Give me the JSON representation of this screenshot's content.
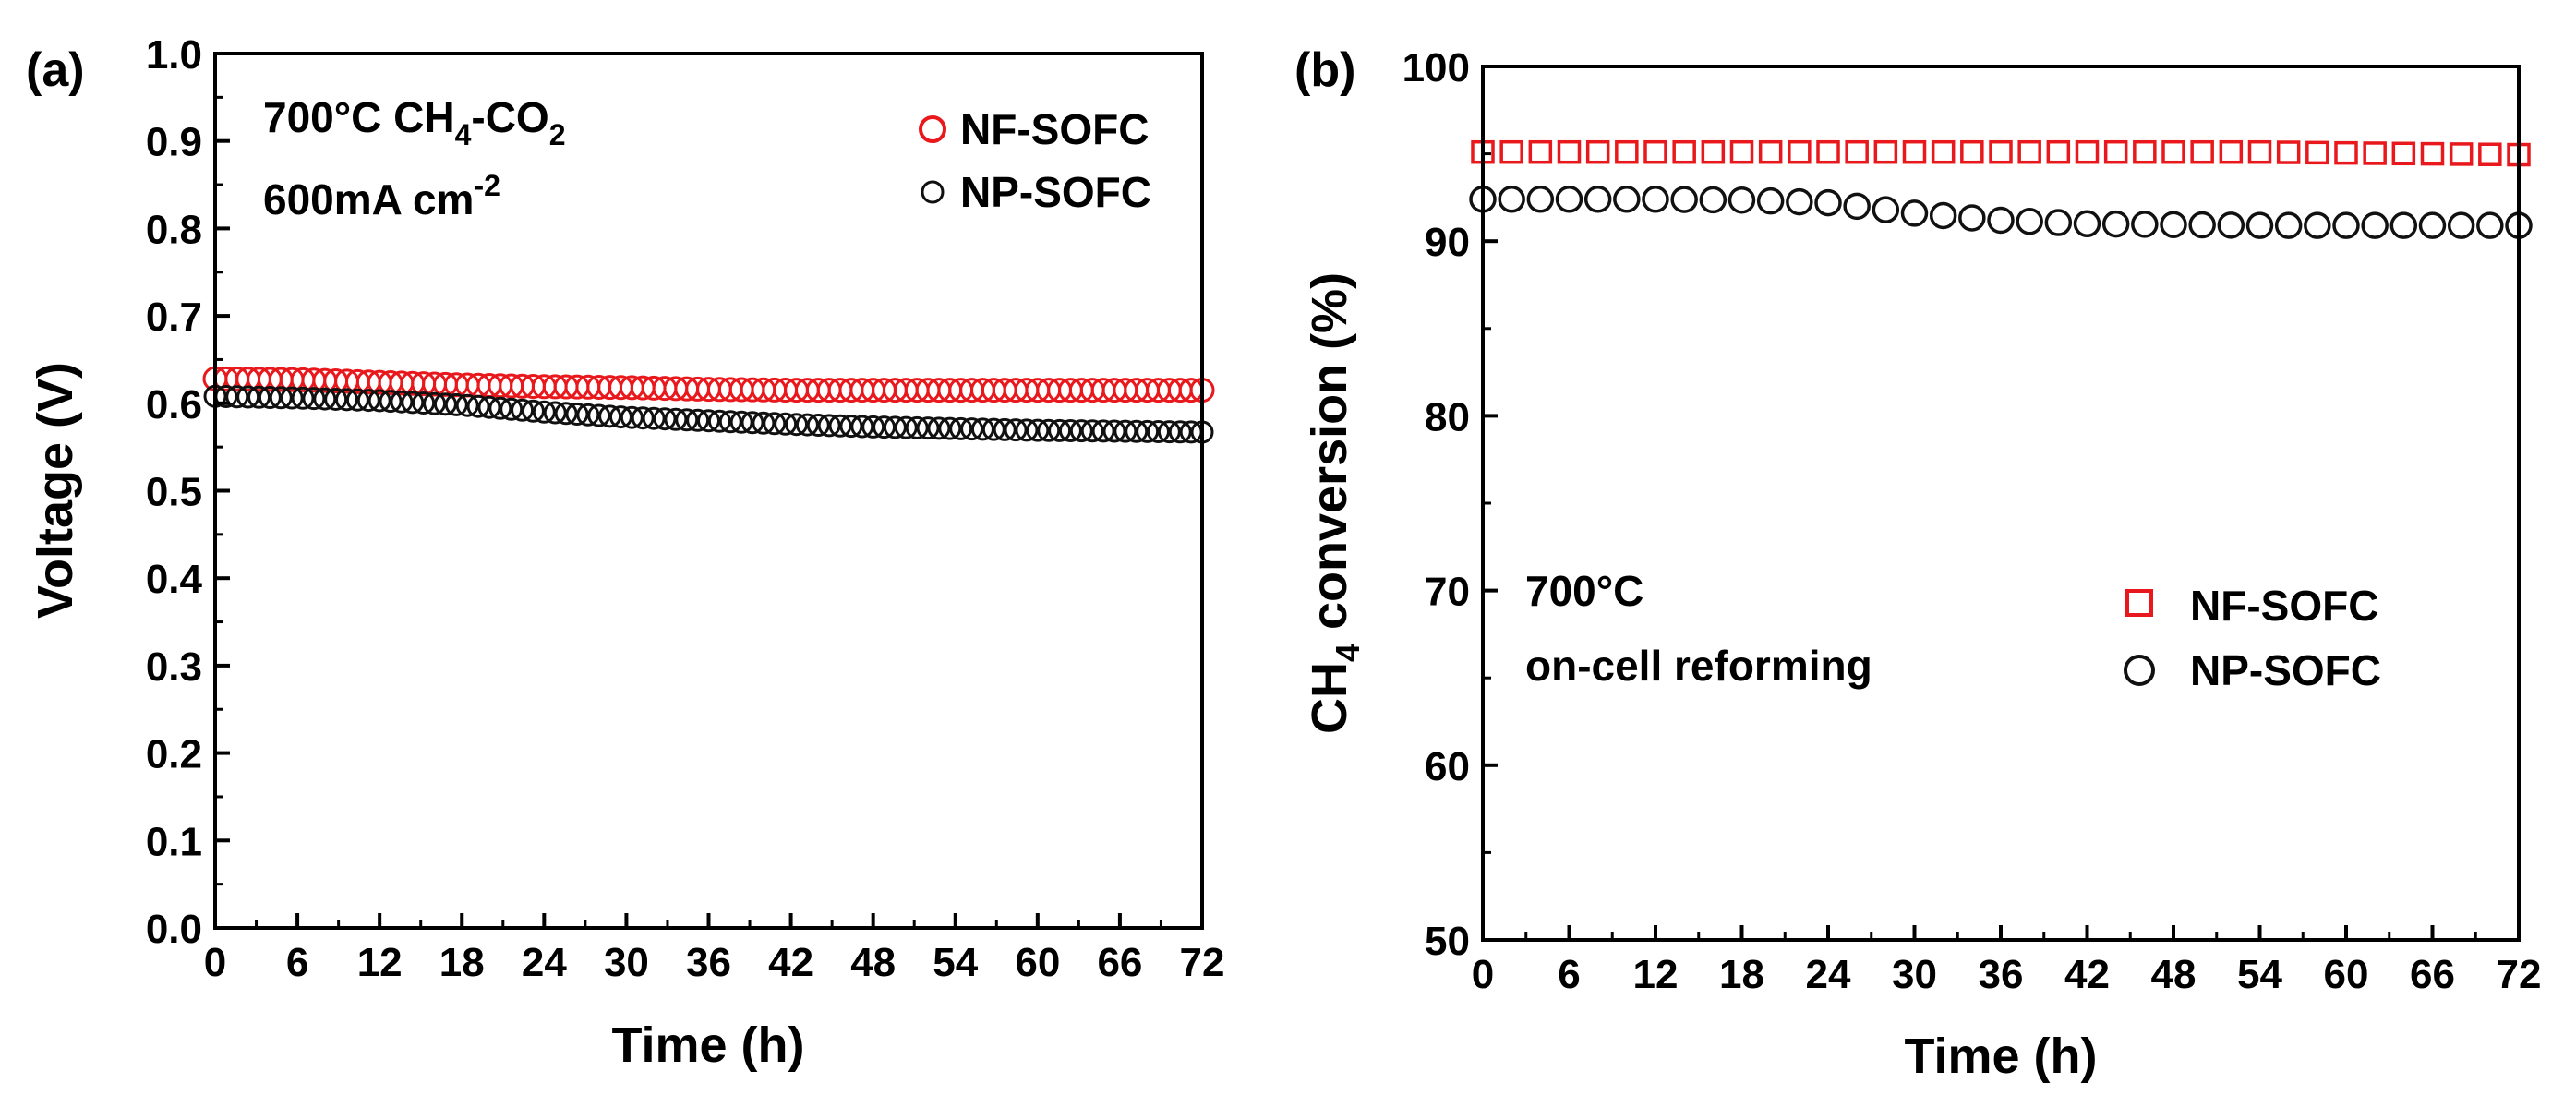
{
  "chart_data": [
    {
      "type": "scatter",
      "panel_label": "(a)",
      "xlabel": "Time (h)",
      "ylabel": "Voltage (V)",
      "xlim": [
        0,
        72
      ],
      "ylim": [
        0.0,
        1.0
      ],
      "xticks": [
        "0",
        "6",
        "12",
        "18",
        "24",
        "30",
        "36",
        "42",
        "48",
        "54",
        "60",
        "66",
        "72"
      ],
      "yticks": [
        "0.0",
        "0.1",
        "0.2",
        "0.3",
        "0.4",
        "0.5",
        "0.6",
        "0.7",
        "0.8",
        "0.9",
        "1.0"
      ],
      "annotation": {
        "line1_prefix": "700°C CH",
        "line1_sub1": "4",
        "line1_mid": "-CO",
        "line1_sub2": "2",
        "line2_prefix": "600mA cm",
        "line2_sup": "-2"
      },
      "legend_position": "top-right",
      "series": [
        {
          "name": "NF-SOFC",
          "color": "#e8181c",
          "marker": "circle",
          "x": [
            0,
            6,
            12,
            18,
            24,
            30,
            36,
            42,
            48,
            54,
            60,
            66,
            72
          ],
          "y": [
            0.628,
            0.627,
            0.624,
            0.621,
            0.619,
            0.618,
            0.616,
            0.615,
            0.615,
            0.615,
            0.615,
            0.615,
            0.615
          ]
        },
        {
          "name": "NP-SOFC",
          "color": "#111111",
          "marker": "circle",
          "x": [
            0,
            6,
            12,
            18,
            24,
            30,
            36,
            42,
            48,
            54,
            60,
            66,
            72
          ],
          "y": [
            0.608,
            0.606,
            0.603,
            0.598,
            0.59,
            0.584,
            0.58,
            0.576,
            0.573,
            0.571,
            0.569,
            0.568,
            0.567
          ]
        }
      ]
    },
    {
      "type": "scatter",
      "panel_label": "(b)",
      "xlabel": "Time (h)",
      "ylabel_prefix": "CH",
      "ylabel_sub": "4",
      "ylabel_suffix": " conversion (%)",
      "xlim": [
        0,
        72
      ],
      "ylim": [
        50,
        100
      ],
      "xticks": [
        "0",
        "6",
        "12",
        "18",
        "24",
        "30",
        "36",
        "42",
        "48",
        "54",
        "60",
        "66",
        "72"
      ],
      "yticks": [
        "50",
        "60",
        "70",
        "80",
        "90",
        "100"
      ],
      "annotation": {
        "line1": "700°C",
        "line2": "on-cell reforming"
      },
      "legend_position": "lower-right",
      "series": [
        {
          "name": "NF-SOFC",
          "color": "#e8181c",
          "marker": "square",
          "x": [
            0,
            6,
            12,
            18,
            24,
            30,
            36,
            42,
            48,
            54,
            60,
            66,
            72
          ],
          "y": [
            95.1,
            95.1,
            95.1,
            95.1,
            95.1,
            95.1,
            95.1,
            95.1,
            95.1,
            95.1,
            95.05,
            95.0,
            94.95
          ]
        },
        {
          "name": "NP-SOFC",
          "color": "#111111",
          "marker": "circle",
          "x": [
            0,
            6,
            12,
            18,
            24,
            30,
            36,
            42,
            48,
            54,
            60,
            66,
            72
          ],
          "y": [
            92.4,
            92.4,
            92.4,
            92.35,
            92.2,
            91.6,
            91.2,
            91.0,
            90.95,
            90.9,
            90.9,
            90.9,
            90.9
          ]
        }
      ]
    }
  ]
}
